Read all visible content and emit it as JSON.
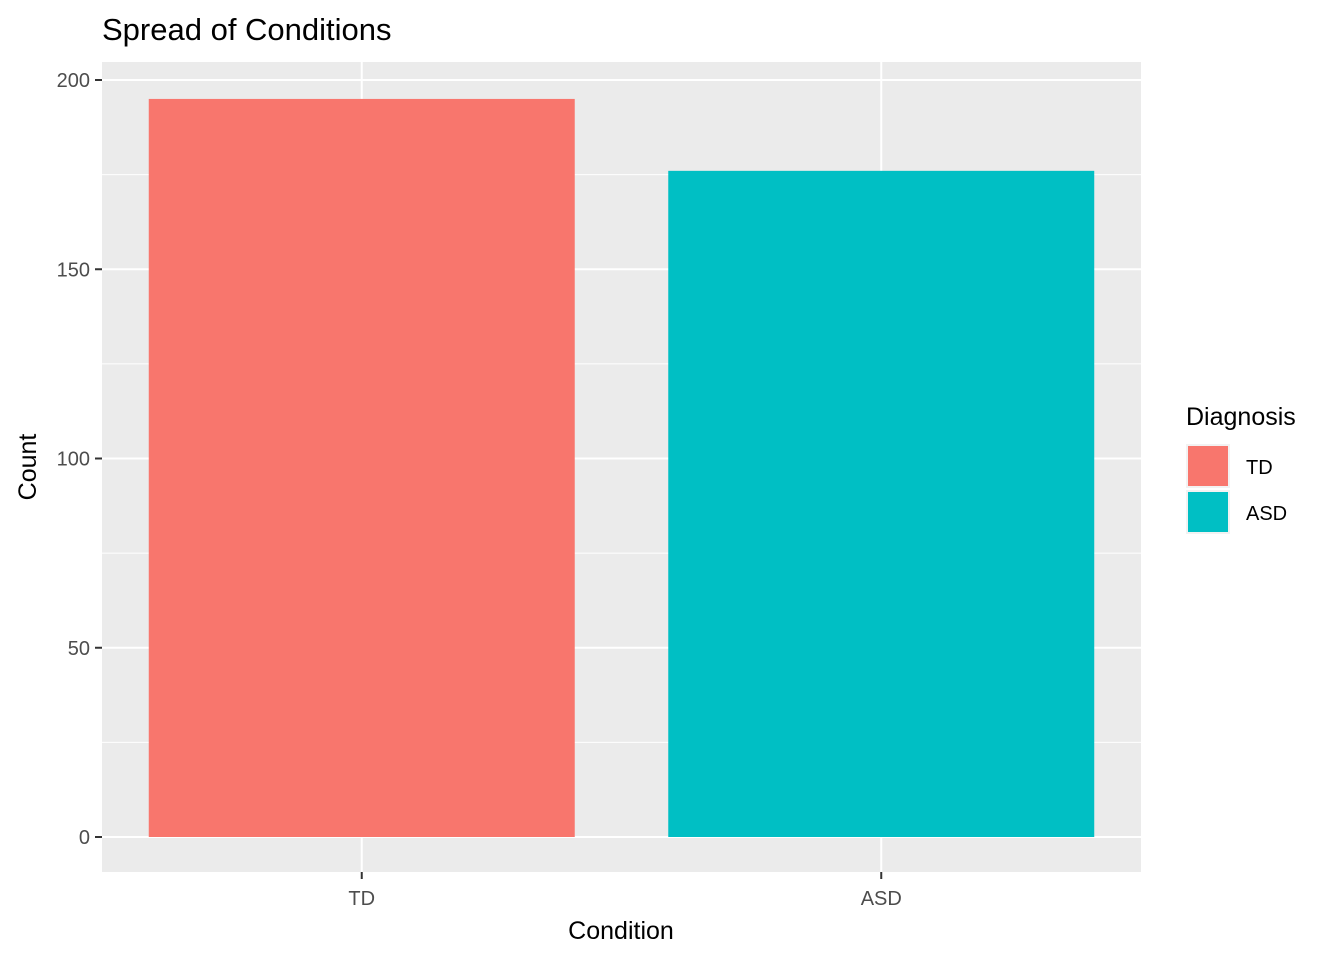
{
  "chart_data": {
    "type": "bar",
    "title": "Spread of Conditions",
    "xlabel": "Condition",
    "ylabel": "Count",
    "categories": [
      "TD",
      "ASD"
    ],
    "values": [
      195,
      176
    ],
    "colors": [
      "#F8766D",
      "#00BFC4"
    ],
    "ylim": [
      0,
      200
    ],
    "yticks": [
      0,
      50,
      100,
      150,
      200
    ],
    "grid": true,
    "panel_background": "#EBEBEB",
    "legend": {
      "title": "Diagnosis",
      "placement": "right",
      "items": [
        {
          "label": "TD",
          "color": "#F8766D"
        },
        {
          "label": "ASD",
          "color": "#00BFC4"
        }
      ]
    }
  }
}
